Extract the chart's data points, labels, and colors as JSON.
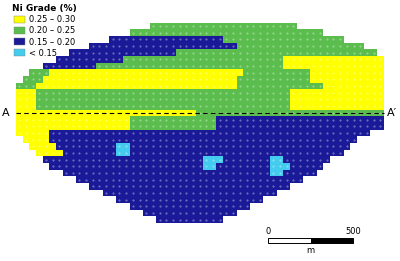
{
  "legend_title": "Ni Grade (%)",
  "legend_entries": [
    {
      "label": "0.25 – 0.30",
      "color": "#FFFF00"
    },
    {
      "label": "0.20 – 0.25",
      "color": "#5BBD4E"
    },
    {
      "label": "0.15 – 0.20",
      "color": "#1A1A99"
    },
    {
      "label": "< 0.15",
      "color": "#44CCEE"
    }
  ],
  "colors": {
    "yellow": "#FFFF00",
    "green": "#5BBD4E",
    "blue": "#1A1A99",
    "cyan": "#44CCEE",
    "bg": "#FFFFFF"
  },
  "annotation_A": "A",
  "annotation_Aprime": "A′"
}
